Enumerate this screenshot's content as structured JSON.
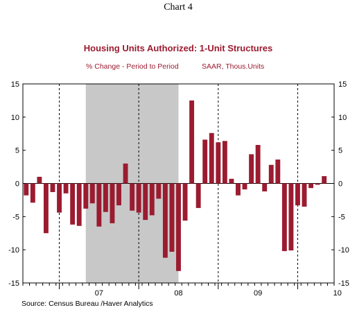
{
  "header": {
    "chart_number": "Chart 4",
    "title": "Housing Units Authorized: 1-Unit Structures",
    "subtitle_left": "% Change - Period to Period",
    "subtitle_right": "SAAR, Thous.Units"
  },
  "footer": {
    "source": "Source:  Census Bureau /Haver Analytics"
  },
  "colors": {
    "bar": "#9b1b30",
    "title": "#9b1b30",
    "recession": "#c8c8c8",
    "axis": "#000000"
  },
  "chart_data": {
    "type": "bar",
    "title": "Housing Units Authorized: 1-Unit Structures",
    "subtitle": "% Change - Period to Period    SAAR, Thous.Units",
    "xlabel": "",
    "ylabel": "",
    "ylim": [
      -15,
      15
    ],
    "yticks": [
      15,
      10,
      5,
      0,
      -5,
      -10,
      -15
    ],
    "year_labels": [
      "07",
      "08",
      "09",
      "10"
    ],
    "period_start": "2006-07",
    "periods": 47,
    "recession_shading": {
      "start_index": 9.5,
      "end_index": 23.5
    },
    "grid": "vertical dashed at year boundaries",
    "values": [
      -1.8,
      -2.9,
      1.0,
      -7.5,
      -1.3,
      -4.4,
      -1.5,
      -6.2,
      -6.4,
      -3.8,
      -3.0,
      -6.5,
      -4.3,
      -6.0,
      -3.3,
      3.0,
      -4.1,
      -4.4,
      -5.5,
      -4.8,
      -2.3,
      -11.2,
      -10.3,
      -13.2,
      -5.6,
      12.5,
      -3.7,
      6.6,
      7.6,
      6.2,
      6.4,
      0.7,
      -1.8,
      -0.9,
      4.4,
      5.8,
      -1.2,
      2.8,
      3.6,
      -10.2,
      -10.1,
      -3.3,
      -3.5,
      -0.7,
      -0.2,
      1.1,
      0
    ]
  }
}
